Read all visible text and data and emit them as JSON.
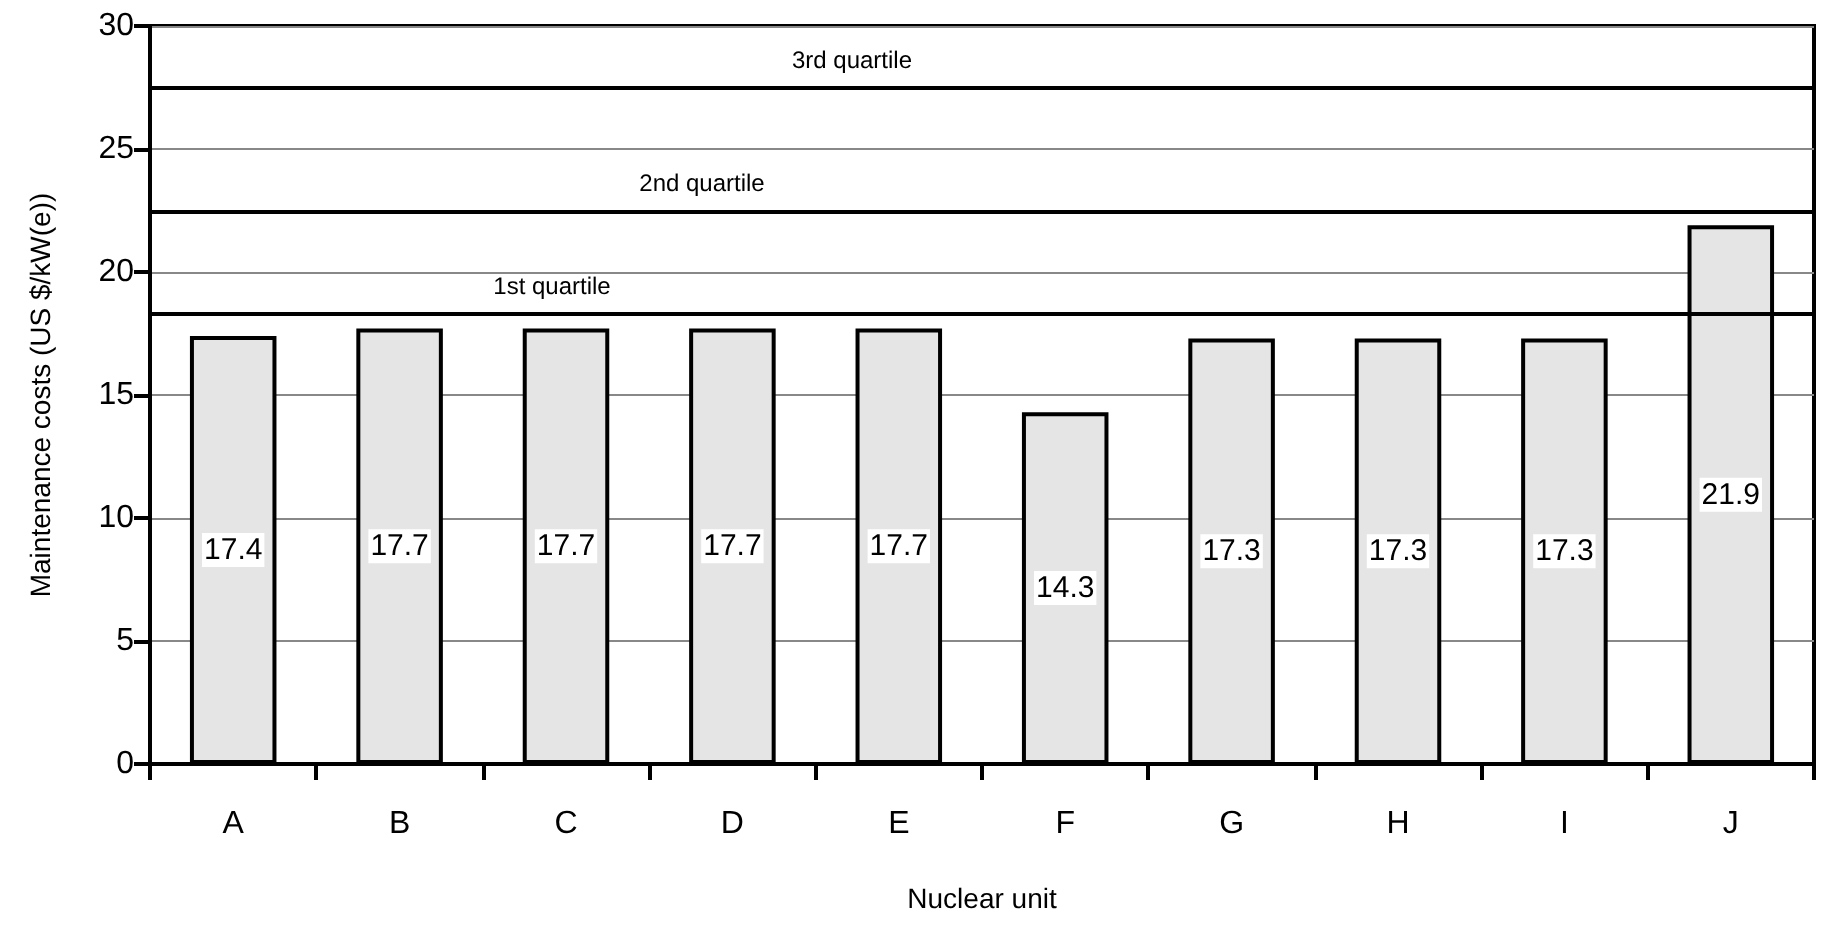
{
  "chart_data": {
    "type": "bar",
    "xlabel": "Nuclear unit",
    "ylabel": "Maintenance costs (US $/kW(e))",
    "categories": [
      "A",
      "B",
      "C",
      "D",
      "E",
      "F",
      "G",
      "H",
      "I",
      "J"
    ],
    "values": [
      17.4,
      17.7,
      17.7,
      17.7,
      17.7,
      14.3,
      17.3,
      17.3,
      17.3,
      21.9
    ],
    "color": "#e5e5e5",
    "ylim": [
      0,
      30
    ],
    "yticks": [
      0,
      5,
      10,
      15,
      20,
      25,
      30
    ],
    "grid": "y",
    "data_labels": true,
    "ref_lines": [
      {
        "axis": "y",
        "value": 18.3,
        "label": "1st quartile",
        "color": "#000000",
        "line_style": "solid"
      },
      {
        "axis": "y",
        "value": 22.5,
        "label": "2nd quartile",
        "color": "#000000",
        "line_style": "solid"
      },
      {
        "axis": "y",
        "value": 27.5,
        "label": "3rd quartile",
        "color": "#000000",
        "line_style": "solid"
      }
    ]
  }
}
